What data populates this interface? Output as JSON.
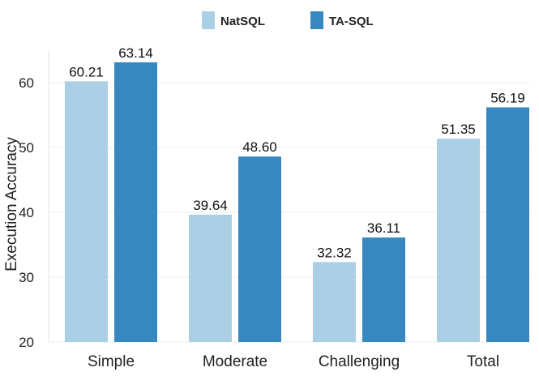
{
  "chart_data": {
    "type": "bar",
    "categories": [
      "Simple",
      "Moderate",
      "Challenging",
      "Total"
    ],
    "series": [
      {
        "name": "NatSQL",
        "values": [
          60.21,
          39.64,
          32.32,
          51.35
        ],
        "labels": [
          "60.21",
          "39.64",
          "32.32",
          "51.35"
        ],
        "color": "#abd0e6"
      },
      {
        "name": "TA-SQL",
        "values": [
          63.14,
          48.6,
          36.11,
          56.19
        ],
        "labels": [
          "63.14",
          "48.60",
          "36.11",
          "56.19"
        ],
        "color": "#3787c0"
      }
    ],
    "ylabel": "Execution Accuracy",
    "xlabel": "",
    "ylim": [
      20,
      65
    ],
    "yticks": [
      20,
      30,
      40,
      50,
      60
    ],
    "grid": true,
    "legend": "top-center"
  }
}
